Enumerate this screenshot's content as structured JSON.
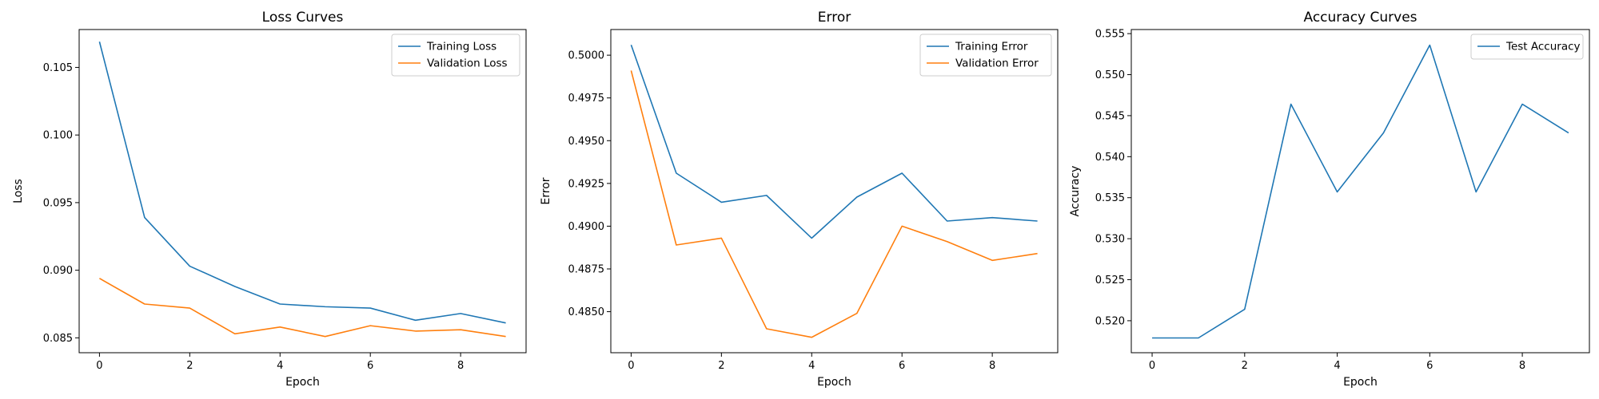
{
  "chart_data": [
    {
      "type": "line",
      "title": "Loss Curves",
      "xlabel": "Epoch",
      "ylabel": "Loss",
      "x": [
        0,
        1,
        2,
        3,
        4,
        5,
        6,
        7,
        8,
        9
      ],
      "xlim": [
        -0.45,
        9.45
      ],
      "ylim": [
        0.0839,
        0.1078
      ],
      "xticks": [
        0,
        2,
        4,
        6,
        8
      ],
      "xtick_labels": [
        "0",
        "2",
        "4",
        "6",
        "8"
      ],
      "yticks": [
        0.085,
        0.09,
        0.095,
        0.1,
        0.105
      ],
      "ytick_labels": [
        "0.085",
        "0.090",
        "0.095",
        "0.100",
        "0.105"
      ],
      "legend": "top-right",
      "grid": false,
      "series": [
        {
          "name": "Training Loss",
          "color": "#1f77b4",
          "values": [
            0.1069,
            0.0939,
            0.0903,
            0.0888,
            0.0875,
            0.0873,
            0.0872,
            0.0863,
            0.0868,
            0.0861
          ]
        },
        {
          "name": "Validation Loss",
          "color": "#ff7f0e",
          "values": [
            0.0894,
            0.0875,
            0.0872,
            0.0853,
            0.0858,
            0.0851,
            0.0859,
            0.0855,
            0.0856,
            0.0851
          ]
        }
      ]
    },
    {
      "type": "line",
      "title": "Error",
      "xlabel": "Epoch",
      "ylabel": "Error",
      "x": [
        0,
        1,
        2,
        3,
        4,
        5,
        6,
        7,
        8,
        9
      ],
      "xlim": [
        -0.45,
        9.45
      ],
      "ylim": [
        0.4826,
        0.5015
      ],
      "xticks": [
        0,
        2,
        4,
        6,
        8
      ],
      "xtick_labels": [
        "0",
        "2",
        "4",
        "6",
        "8"
      ],
      "yticks": [
        0.485,
        0.4875,
        0.49,
        0.4925,
        0.495,
        0.4975,
        0.5
      ],
      "ytick_labels": [
        "0.4850",
        "0.4875",
        "0.4900",
        "0.4925",
        "0.4950",
        "0.4975",
        "0.5000"
      ],
      "legend": "top-right",
      "grid": false,
      "series": [
        {
          "name": "Training Error",
          "color": "#1f77b4",
          "values": [
            0.5006,
            0.4931,
            0.4914,
            0.4918,
            0.4893,
            0.4917,
            0.4931,
            0.4903,
            0.4905,
            0.4903
          ]
        },
        {
          "name": "Validation Error",
          "color": "#ff7f0e",
          "values": [
            0.4991,
            0.4889,
            0.4893,
            0.484,
            0.4835,
            0.4849,
            0.49,
            0.4891,
            0.488,
            0.4884
          ]
        }
      ]
    },
    {
      "type": "line",
      "title": "Accuracy Curves",
      "xlabel": "Epoch",
      "ylabel": "Accuracy",
      "x": [
        0,
        1,
        2,
        3,
        4,
        5,
        6,
        7,
        8,
        9
      ],
      "xlim": [
        -0.45,
        9.45
      ],
      "ylim": [
        0.5161,
        0.5555
      ],
      "xticks": [
        0,
        2,
        4,
        6,
        8
      ],
      "xtick_labels": [
        "0",
        "2",
        "4",
        "6",
        "8"
      ],
      "yticks": [
        0.52,
        0.525,
        0.53,
        0.535,
        0.54,
        0.545,
        0.55,
        0.555
      ],
      "ytick_labels": [
        "0.520",
        "0.525",
        "0.530",
        "0.535",
        "0.540",
        "0.545",
        "0.550",
        "0.555"
      ],
      "legend": "top-right",
      "grid": false,
      "series": [
        {
          "name": "Test Accuracy",
          "color": "#1f77b4",
          "values": [
            0.5179,
            0.5179,
            0.5214,
            0.5464,
            0.5357,
            0.5429,
            0.5536,
            0.5357,
            0.5464,
            0.5429
          ]
        }
      ]
    }
  ]
}
